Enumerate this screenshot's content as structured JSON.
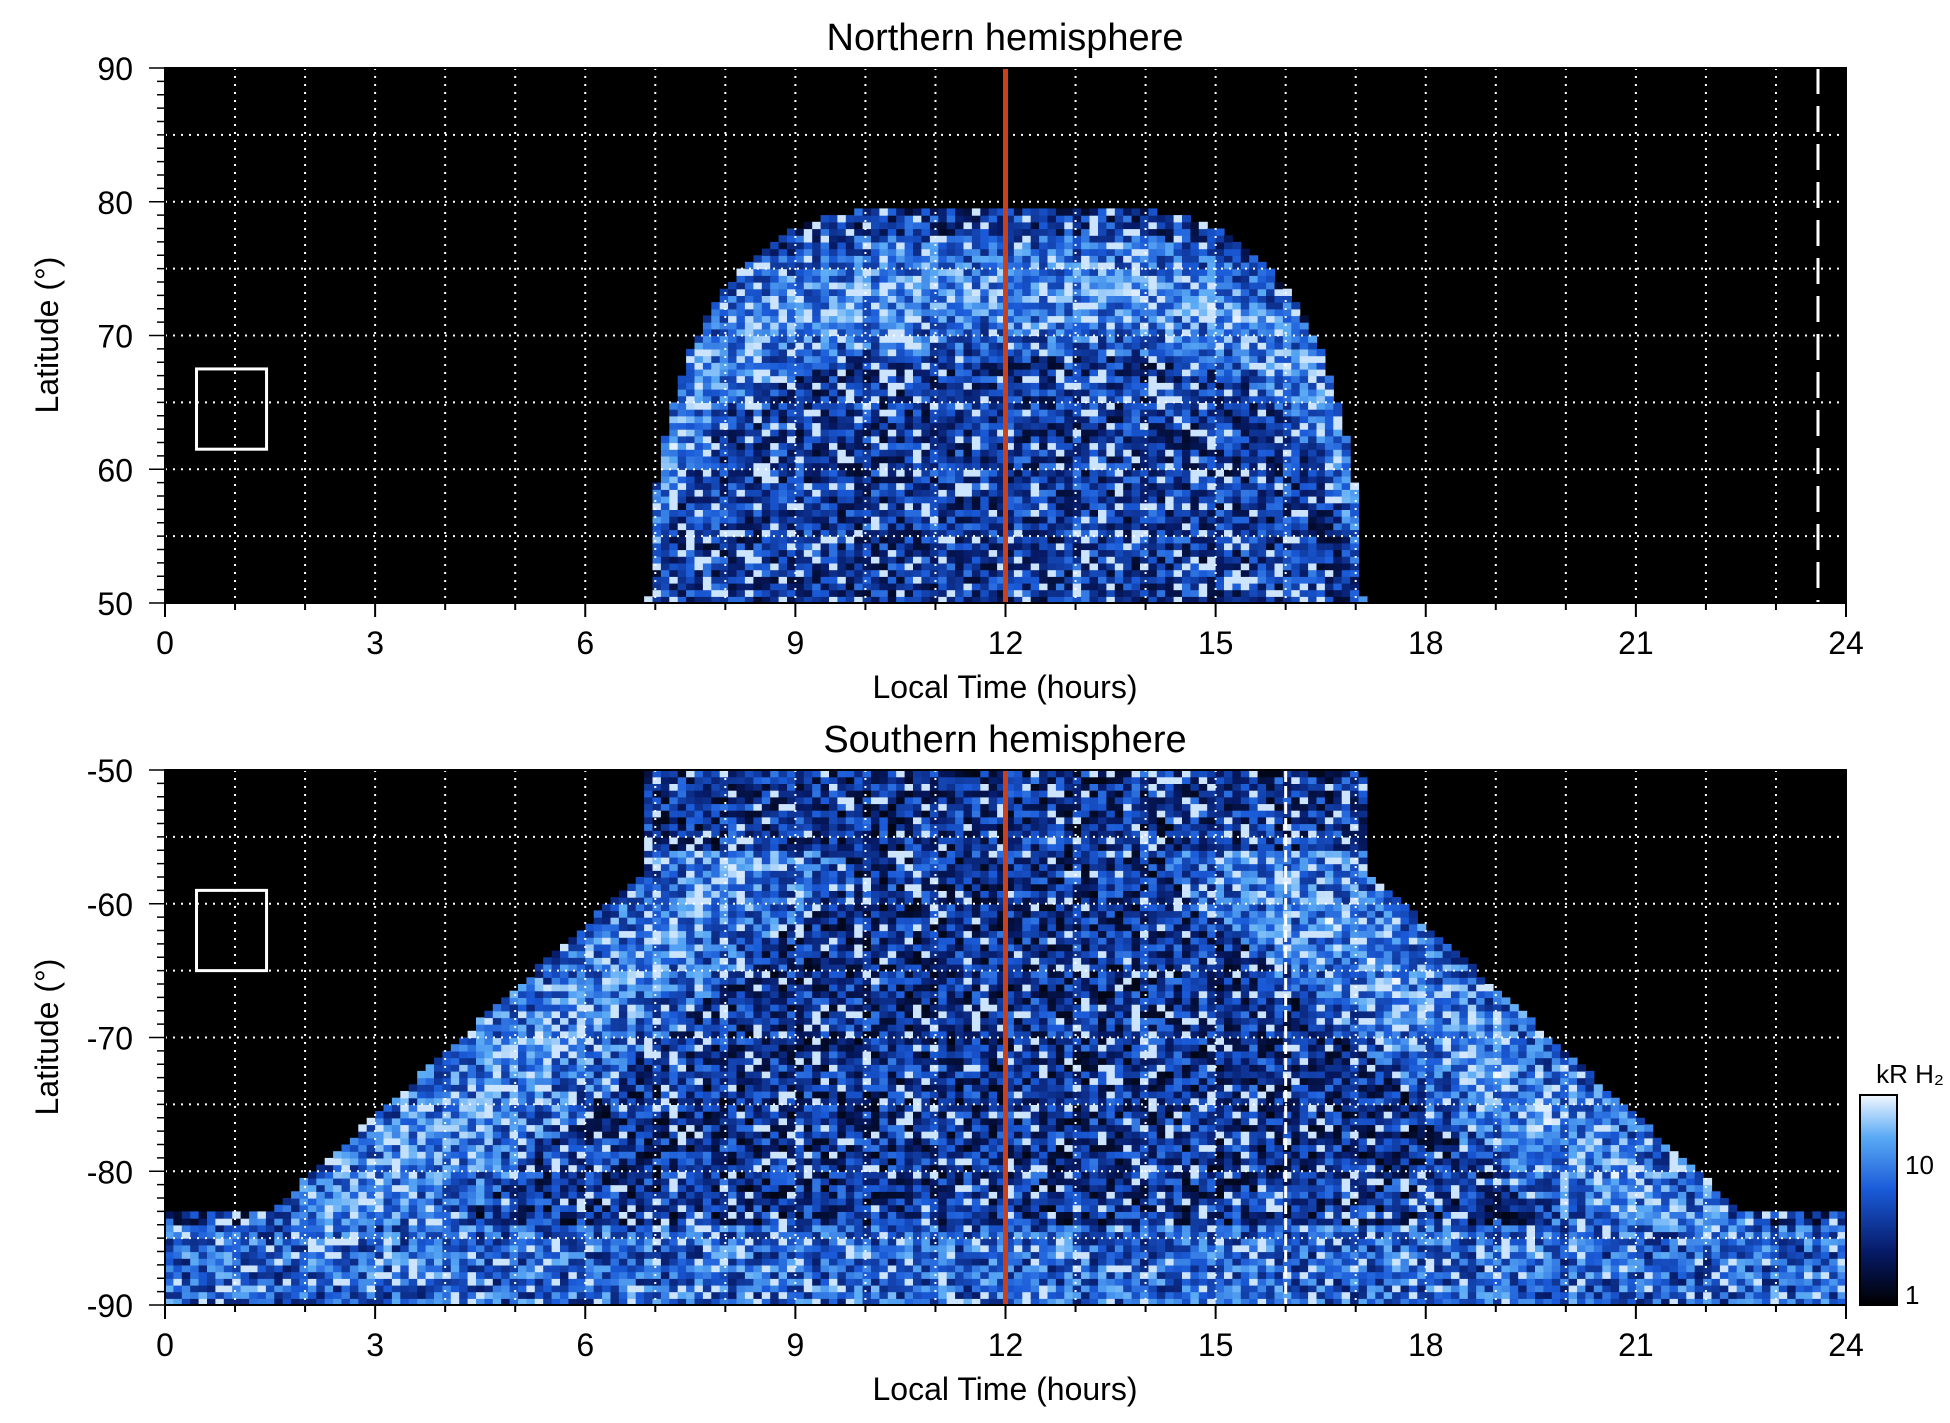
{
  "chart_data": [
    {
      "type": "heatmap",
      "title": "Northern hemisphere",
      "xlabel": "Local Time (hours)",
      "ylabel": "Latitude (°)",
      "xlim": [
        0,
        24
      ],
      "ylim": [
        50,
        90
      ],
      "x_ticks": [
        "0",
        "3",
        "6",
        "9",
        "12",
        "15",
        "18",
        "21",
        "24"
      ],
      "y_ticks": [
        "50",
        "60",
        "70",
        "80",
        "90"
      ],
      "grid": true,
      "noon_line_lt": 12,
      "dashed_line_lt": 23.6,
      "box": {
        "lt": [
          0.45,
          1.45
        ],
        "lat": [
          61.5,
          67.5
        ]
      },
      "emission_region": {
        "lt_range": [
          7,
          17.2
        ],
        "max_lat": 79.5,
        "bright_oval_lat": [
          69,
          76
        ]
      }
    },
    {
      "type": "heatmap",
      "title": "Southern hemisphere",
      "xlabel": "Local Time (hours)",
      "ylabel": "Latitude (°)",
      "xlim": [
        0,
        24
      ],
      "ylim": [
        -90,
        -50
      ],
      "x_ticks": [
        "0",
        "3",
        "6",
        "9",
        "12",
        "15",
        "18",
        "21",
        "24"
      ],
      "y_ticks": [
        "-90",
        "-80",
        "-70",
        "-60",
        "-50"
      ],
      "grid": true,
      "noon_line_lt": 12,
      "dashed_line_lt": 16,
      "box": {
        "lt": [
          0.45,
          1.45
        ],
        "lat": [
          -65,
          -59
        ]
      },
      "emission_region": {
        "lt_range": [
          0,
          24
        ],
        "bright_oval_lat": [
          -75,
          -60
        ]
      }
    }
  ],
  "colorbar": {
    "label": "kR H₂",
    "ticks": [
      "1",
      "10"
    ],
    "scale": "log",
    "range": [
      1,
      30
    ]
  },
  "colors": {
    "background": "#000000",
    "noon_line": "#c8401c",
    "grid": "#ffffff",
    "emission_low": "#0a1e6e",
    "emission_high": "#e8f6ff"
  }
}
